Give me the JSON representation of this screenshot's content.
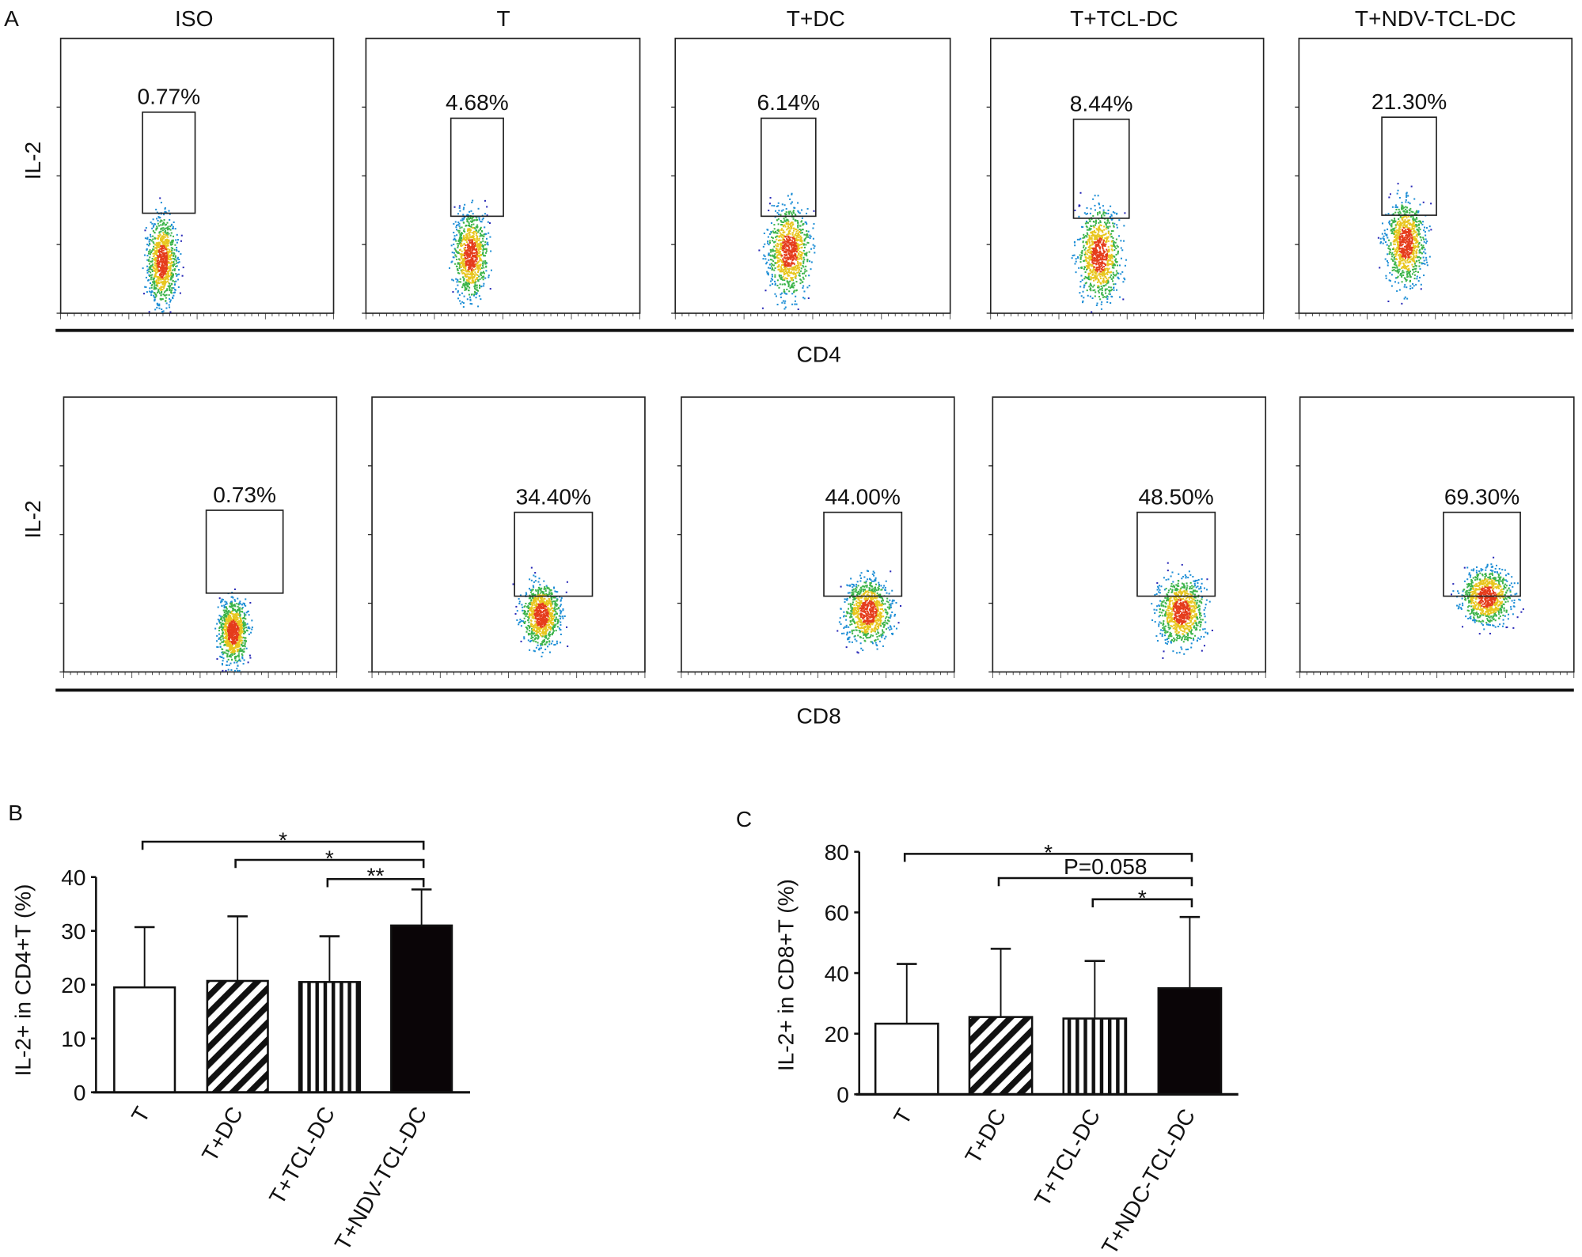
{
  "panel_labels": {
    "a": "A",
    "b": "B",
    "c": "C"
  },
  "flow": {
    "ylabel": "IL-2",
    "rows": [
      {
        "xlabel": "CD4",
        "titles": [
          "ISO",
          "T",
          "T+DC",
          "T+TCL-DC",
          "T+NDV-TCL-DC"
        ],
        "percents": [
          "0.77%",
          "4.68%",
          "6.14%",
          "8.44%",
          "21.30%"
        ]
      },
      {
        "xlabel": "CD8",
        "percents": [
          "0.73%",
          "34.40%",
          "44.00%",
          "48.50%",
          "69.30%"
        ]
      }
    ]
  },
  "chart_data": [
    {
      "type": "bar",
      "id": "B",
      "categories": [
        "T",
        "T+DC",
        "T+TCL-DC",
        "T+NDV-TCL-DC"
      ],
      "values": [
        19.5,
        20.7,
        20.5,
        31.0
      ],
      "error_upper": [
        30.7,
        32.7,
        29.0,
        37.7
      ],
      "fills": [
        "white",
        "diagonal-hatch",
        "vertical-hatch",
        "black"
      ],
      "ylabel": "IL-2+ in CD4+T (%)",
      "ylim": [
        0,
        40
      ],
      "yticks": [
        "0",
        "10",
        "20",
        "30",
        "40"
      ],
      "significance": [
        {
          "from": 0,
          "to": 3,
          "label": "*"
        },
        {
          "from": 1,
          "to": 3,
          "label": "*"
        },
        {
          "from": 2,
          "to": 3,
          "label": "**"
        }
      ]
    },
    {
      "type": "bar",
      "id": "C",
      "categories": [
        "T",
        "T+DC",
        "T+TCL-DC",
        "T+NDC-TCL-DC"
      ],
      "values": [
        23.3,
        25.5,
        25.0,
        35.0
      ],
      "error_upper": [
        43.0,
        48.0,
        44.0,
        58.5
      ],
      "fills": [
        "white",
        "diagonal-hatch",
        "vertical-hatch",
        "black"
      ],
      "ylabel": "IL-2+ in CD8+T (%)",
      "ylim": [
        0,
        80
      ],
      "yticks": [
        "0",
        "20",
        "40",
        "60",
        "80"
      ],
      "significance": [
        {
          "from": 0,
          "to": 3,
          "label": "*"
        },
        {
          "from": 1,
          "to": 3,
          "label": "P=0.058"
        },
        {
          "from": 2,
          "to": 3,
          "label": "*"
        }
      ]
    }
  ]
}
